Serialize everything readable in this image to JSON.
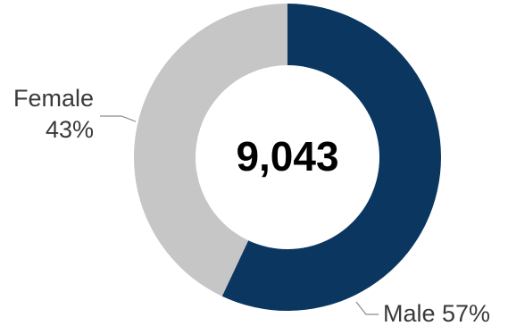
{
  "chart_data": {
    "type": "pie",
    "donut": true,
    "center_text": "9,043",
    "slices": [
      {
        "category": "Male",
        "value": 57,
        "label": "Male 57%",
        "color": "#0b3660"
      },
      {
        "category": "Female",
        "value": 43,
        "label_name": "Female",
        "label_pct": "43%",
        "color": "#c6c6c6"
      }
    ],
    "start_angle_deg": 0,
    "direction": "clockwise",
    "legend": "none"
  },
  "colors": {
    "leader_line": "#8a8a8a",
    "label_text": "#3a3a3a",
    "center_text": "#000000"
  }
}
